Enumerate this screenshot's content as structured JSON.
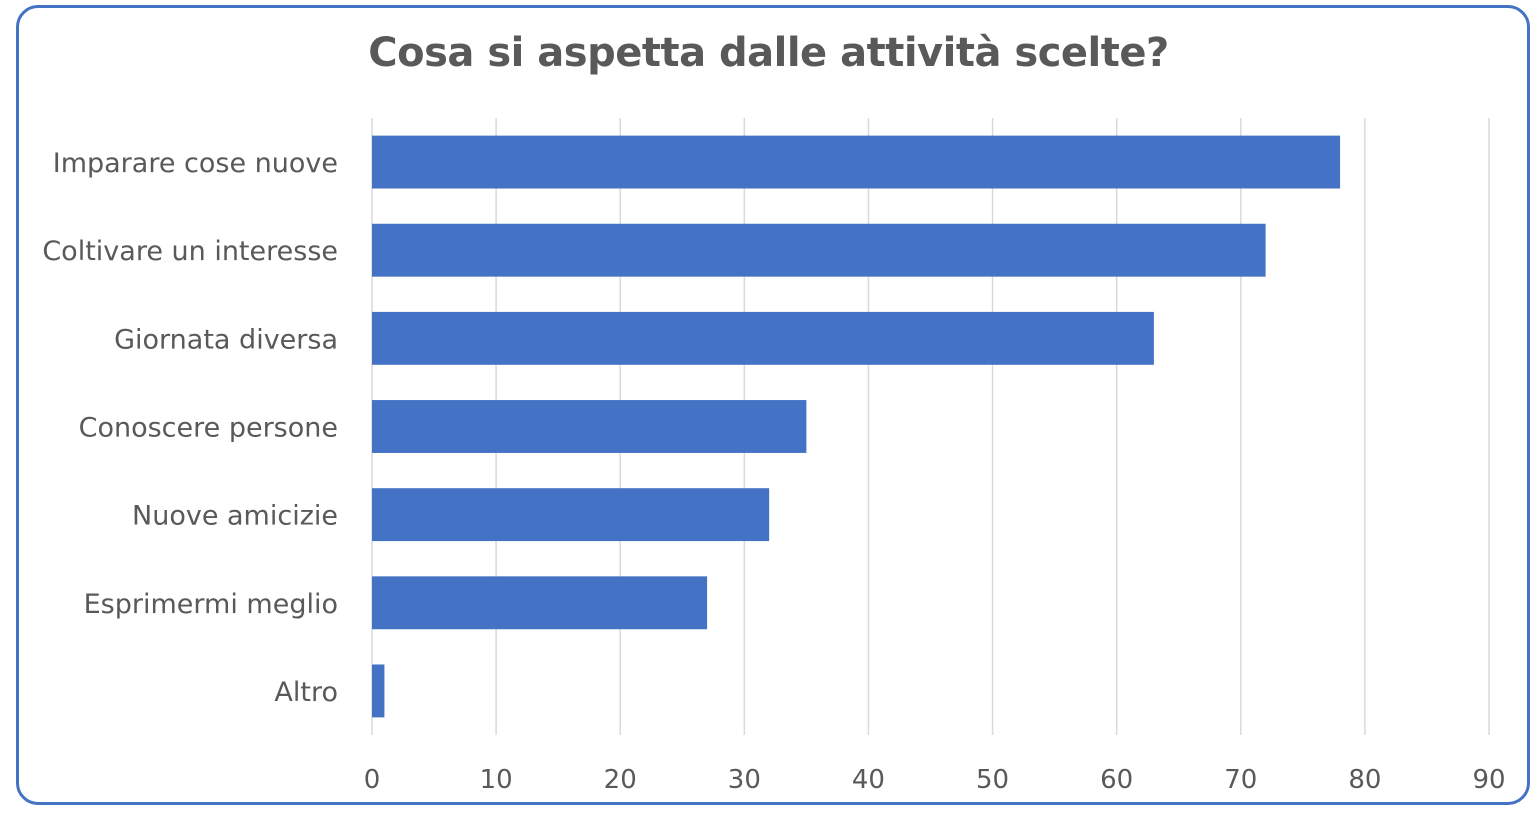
{
  "chart_data": {
    "type": "bar",
    "orientation": "horizontal",
    "title": "Cosa si aspetta dalle attività scelte?",
    "categories": [
      "Imparare cose nuove",
      "Coltivare un interesse",
      "Giornata diversa",
      "Conoscere persone",
      "Nuove amicizie",
      "Esprimermi meglio",
      "Altro"
    ],
    "values": [
      78,
      72,
      63,
      35,
      32,
      27,
      1
    ],
    "xlim": [
      0,
      90
    ],
    "xticks": [
      "0",
      "10",
      "20",
      "30",
      "40",
      "50",
      "60",
      "70",
      "80",
      "90"
    ],
    "xlabel": "",
    "ylabel": "",
    "grid": "vertical",
    "bar_color": "#4472c4",
    "grid_color": "#d9d9d9",
    "border_color": "#4472c4"
  }
}
